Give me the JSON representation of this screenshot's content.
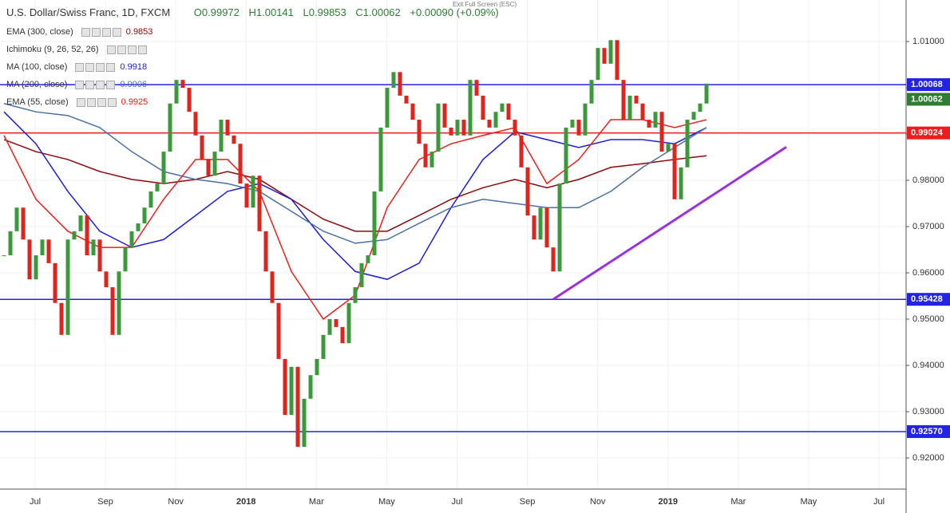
{
  "top_hint": "Exit Full Screen (ESC)",
  "chart_data": {
    "type": "candlestick",
    "title": "U.S. Dollar/Swiss Franc, 1D, FXCM",
    "ohlc": [
      "O0.99972",
      "H1.00141",
      "L0.99853",
      "C1.00062",
      "+0.00090 (+0.09%)"
    ],
    "up_color": "#3a9a3a",
    "down_color": "#e0241b",
    "values": [
      0.9638,
      0.969,
      0.9741,
      0.9672,
      0.9586,
      0.9638,
      0.9672,
      0.9621,
      0.9535,
      0.9466,
      0.9672,
      0.969,
      0.9724,
      0.9638,
      0.9672,
      0.9603,
      0.9569,
      0.9466,
      0.9603,
      0.9655,
      0.969,
      0.9707,
      0.9741,
      0.9776,
      0.9793,
      0.9862,
      0.9966,
      1.0017,
      1.0,
      0.9948,
      0.9897,
      0.9845,
      0.981,
      0.9862,
      0.9931,
      0.9897,
      0.9879,
      0.9793,
      0.9741,
      0.981,
      0.969,
      0.9603,
      0.9535,
      0.9414,
      0.9293,
      0.9397,
      0.9224,
      0.9328,
      0.9379,
      0.9414,
      0.9466,
      0.95,
      0.9483,
      0.9448,
      0.9535,
      0.9569,
      0.9621,
      0.9638,
      0.9776,
      0.9914,
      1.0,
      1.0034,
      0.9983,
      0.9966,
      0.9931,
      0.9879,
      0.9828,
      0.9862,
      0.9966,
      0.9914,
      0.9897,
      0.9931,
      0.9897,
      1.0017,
      0.9983,
      0.9931,
      0.9914,
      0.9948,
      0.9966,
      0.9931,
      0.9897,
      0.9828,
      0.9724,
      0.9672,
      0.9741,
      0.9655,
      0.9603,
      0.9793,
      0.9914,
      0.9931,
      0.9897,
      0.9966,
      1.0017,
      1.0086,
      1.0052,
      1.0103,
      1.0017,
      0.9931,
      0.9983,
      0.9966,
      0.9931,
      0.9914,
      0.9948,
      0.9862,
      0.9879,
      0.9759,
      0.9828,
      0.9931,
      0.9948,
      0.9966,
      1.0009
    ],
    "indicators": [
      {
        "name": "EMA (300, close)",
        "value_label": "0.9853",
        "color": "#8b0a0a",
        "values": [
          0.9888,
          0.9862,
          0.9845,
          0.9819,
          0.9802,
          0.9793,
          0.9802,
          0.9819,
          0.9802,
          0.9759,
          0.9716,
          0.969,
          0.969,
          0.9724,
          0.9759,
          0.9784,
          0.9802,
          0.9784,
          0.9802,
          0.9828,
          0.9836,
          0.9845,
          0.9853
        ]
      },
      {
        "name": "Ichimoku (9, 26, 52, 26)"
      },
      {
        "name": "MA (100, close)",
        "value_label": "0.9918",
        "color": "#1d1dd6",
        "values": [
          0.9948,
          0.9879,
          0.9776,
          0.969,
          0.9655,
          0.9672,
          0.9724,
          0.9776,
          0.9793,
          0.9759,
          0.9672,
          0.9603,
          0.9586,
          0.9621,
          0.9741,
          0.9845,
          0.9905,
          0.9888,
          0.9871,
          0.9888,
          0.9888,
          0.9879,
          0.9914
        ]
      },
      {
        "name": "MA (200, close)",
        "value_label": "0.9906",
        "color": "#4a6fa5",
        "values": [
          0.9966,
          0.9948,
          0.994,
          0.9914,
          0.9862,
          0.9819,
          0.9802,
          0.9793,
          0.9776,
          0.9733,
          0.969,
          0.9664,
          0.9672,
          0.9707,
          0.9741,
          0.9759,
          0.975,
          0.9741,
          0.9741,
          0.9776,
          0.9828,
          0.9871,
          0.9914
        ]
      },
      {
        "name": "EMA (55, close)",
        "value_label": "0.9925",
        "color": "#e8201c",
        "values": [
          0.9897,
          0.9759,
          0.969,
          0.9655,
          0.9655,
          0.9759,
          0.9845,
          0.9845,
          0.9776,
          0.9603,
          0.95,
          0.9552,
          0.9741,
          0.9845,
          0.9879,
          0.9897,
          0.9914,
          0.9793,
          0.9845,
          0.9931,
          0.9931,
          0.9914,
          0.9931
        ]
      }
    ],
    "levels": [
      {
        "value": 1.00068,
        "label": "1.00068",
        "color": "#2323e6"
      },
      {
        "value": 0.99024,
        "label": "0.99024",
        "color": "#ee1c1c"
      },
      {
        "value": 0.95428,
        "label": "0.95428",
        "color": "#2323e6"
      },
      {
        "value": 0.9257,
        "label": "0.92570",
        "color": "#2323e6"
      }
    ],
    "last_price": {
      "value": 1.00062,
      "label": "1.00062",
      "color": "#2e7d32"
    },
    "trendline": {
      "values": [
        0.9543,
        0.9872
      ],
      "color": "#9b30e0"
    },
    "ylim": [
      0.91328,
      1.01897
    ],
    "yticks": [
      {
        "value": 0.92,
        "label": "0.92000"
      },
      {
        "value": 0.93,
        "label": "0.93000"
      },
      {
        "value": 0.94,
        "label": "0.94000"
      },
      {
        "value": 0.95,
        "label": "0.95000"
      },
      {
        "value": 0.96,
        "label": "0.96000"
      },
      {
        "value": 0.97,
        "label": "0.97000"
      },
      {
        "value": 0.98,
        "label": "0.98000"
      },
      {
        "value": 0.99,
        "label": "0.99000"
      },
      {
        "value": 1.0,
        "label": "1.00000"
      },
      {
        "value": 1.01,
        "label": "1.01000"
      }
    ],
    "xticks": [
      "Jul",
      "Sep",
      "Nov",
      "2018",
      "Mar",
      "May",
      "Jul",
      "Sep",
      "Nov",
      "2019",
      "Mar",
      "May",
      "Jul"
    ],
    "grid": true
  }
}
